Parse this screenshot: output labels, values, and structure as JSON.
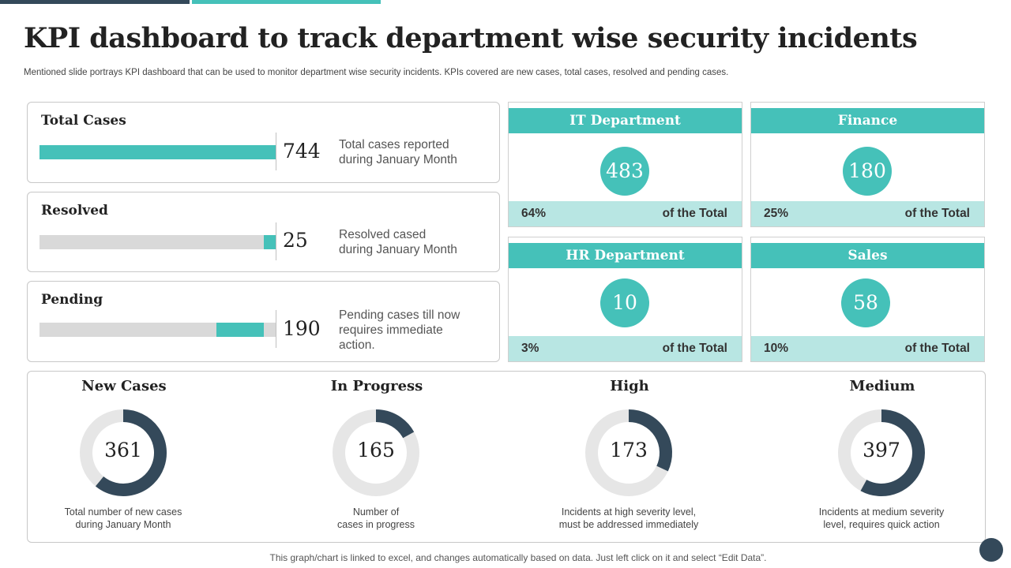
{
  "title": "KPI dashboard to track department wise security incidents",
  "subtitle": "Mentioned slide portrays KPI dashboard that can be used to monitor department wise security incidents. KPIs covered are new cases, total cases, resolved and pending cases.",
  "colors": {
    "teal": "#45c1b9",
    "teal_light": "#b8e6e3",
    "navy": "#34495a",
    "track": "#d9d9d9"
  },
  "metrics": [
    {
      "label": "Total Cases",
      "value": "744",
      "desc_lines": [
        "Total cases reported",
        "during January Month"
      ],
      "bar_fill_fraction": 1.0
    },
    {
      "label": "Resolved",
      "value": "25",
      "desc_lines": [
        "Resolved cased",
        "during January Month"
      ],
      "bar_fill_fraction": 0.05
    },
    {
      "label": "Pending",
      "value": "190",
      "desc_lines": [
        "Pending cases till now",
        "requires immediate",
        "action."
      ],
      "bar_fill_fraction": 0.2
    }
  ],
  "departments": [
    {
      "name": "IT Department",
      "value": "483",
      "percent": "64%",
      "of_total": "of the Total"
    },
    {
      "name": "Finance",
      "value": "180",
      "percent": "25%",
      "of_total": "of the Total"
    },
    {
      "name": "HR Department",
      "value": "10",
      "percent": "3%",
      "of_total": "of the Total"
    },
    {
      "name": "Sales",
      "value": "58",
      "percent": "10%",
      "of_total": "of the Total"
    }
  ],
  "donuts": [
    {
      "title": "New Cases",
      "value": "361",
      "fraction": 0.61,
      "desc_lines": [
        "Total number of new cases",
        "during January Month"
      ]
    },
    {
      "title": "In Progress",
      "value": "165",
      "fraction": 0.17,
      "desc_lines": [
        "Number of",
        "cases in progress"
      ]
    },
    {
      "title": "High",
      "value": "173",
      "fraction": 0.32,
      "desc_lines": [
        "Incidents at high severity level,",
        "must be addressed immediately"
      ]
    },
    {
      "title": "Medium",
      "value": "397",
      "fraction": 0.58,
      "desc_lines": [
        "Incidents at medium severity",
        "level,  requires quick action"
      ]
    }
  ],
  "footer_note": "This graph/chart is linked to excel,  and changes automatically based on data. Just left click on it and select “Edit Data”."
}
